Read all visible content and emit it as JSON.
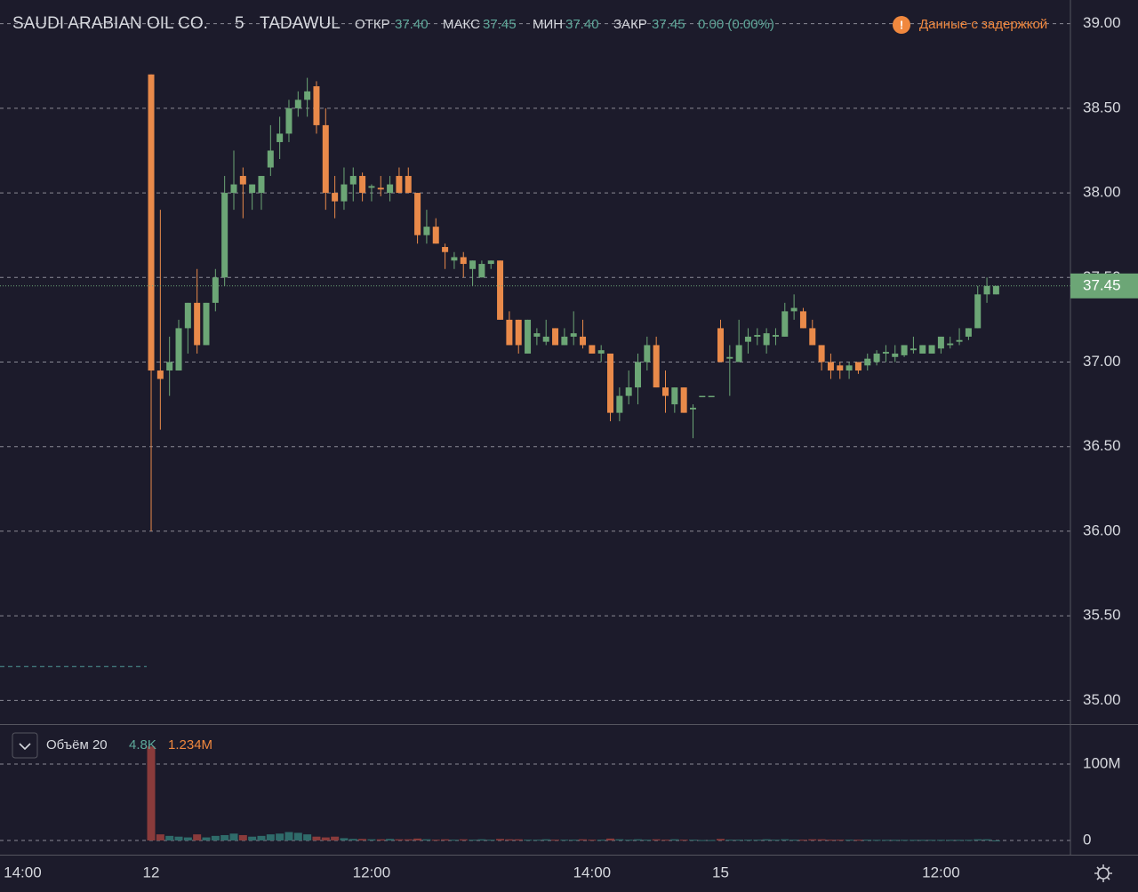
{
  "chart_data": {
    "type": "candlestick",
    "title": "SAUDI ARABIAN OIL CO.",
    "interval": "5",
    "exchange": "TADAWUL",
    "legend": {
      "open_label": "ОТКР",
      "open": "37.40",
      "high_label": "МАКС",
      "high": "37.45",
      "low_label": "МИН",
      "low": "37.40",
      "close_label": "ЗАКР",
      "close": "37.45",
      "change": "0.00 (0.00%)"
    },
    "notice_icon": "!",
    "notice": "Данные с задержкой",
    "categories": [
      "14:00",
      null,
      null,
      null,
      null,
      null,
      null,
      null,
      null,
      null,
      null,
      null,
      null,
      null,
      "12",
      null,
      null,
      null,
      null,
      null,
      null,
      null,
      null,
      null,
      null,
      null,
      null,
      null,
      null,
      null,
      null,
      null,
      null,
      null,
      null,
      null,
      null,
      null,
      "12:00",
      null,
      null,
      null,
      null,
      null,
      null,
      null,
      null,
      null,
      null,
      null,
      null,
      null,
      null,
      null,
      null,
      null,
      null,
      null,
      null,
      null,
      null,
      null,
      "14:00",
      null,
      null,
      null,
      null,
      null,
      null,
      null,
      null,
      null,
      null,
      null,
      null,
      null,
      "15",
      null,
      null,
      null,
      null,
      null,
      null,
      null,
      null,
      null,
      null,
      null,
      null,
      null,
      null,
      null,
      null,
      null,
      null,
      null,
      null,
      null,
      null,
      null,
      "12:00",
      null,
      null,
      null,
      null,
      null,
      null
    ],
    "open": [
      null,
      null,
      null,
      null,
      null,
      null,
      null,
      null,
      null,
      null,
      null,
      null,
      null,
      null,
      38.7,
      36.95,
      36.95,
      36.95,
      37.2,
      37.35,
      37.1,
      37.35,
      37.5,
      38.0,
      38.1,
      38.0,
      38.0,
      38.15,
      38.3,
      38.35,
      38.5,
      38.55,
      38.63,
      38.4,
      38.0,
      37.95,
      38.05,
      38.1,
      38.03,
      38.03,
      38.0,
      38.1,
      38.1,
      38.0,
      37.75,
      37.8,
      37.68,
      37.6,
      37.62,
      37.55,
      37.5,
      37.58,
      37.6,
      37.25,
      37.25,
      37.05,
      37.15,
      37.12,
      37.2,
      37.1,
      37.15,
      37.15,
      37.1,
      37.05,
      37.05,
      36.7,
      36.8,
      36.85,
      37.0,
      37.1,
      36.85,
      36.75,
      36.85,
      36.72,
      36.8,
      36.8,
      37.2,
      37.02,
      37.0,
      37.12,
      37.15,
      37.1,
      37.15,
      37.15,
      37.3,
      37.3,
      37.2,
      37.1,
      37.0,
      36.98,
      36.95,
      37.0,
      36.98,
      37.0,
      37.05,
      37.03,
      37.04,
      37.07,
      37.05,
      37.05,
      37.08,
      37.1,
      37.12,
      37.15,
      37.2,
      37.4,
      37.4
    ],
    "high": [
      null,
      null,
      null,
      null,
      null,
      null,
      null,
      null,
      null,
      null,
      null,
      null,
      null,
      null,
      38.7,
      37.9,
      37.15,
      37.25,
      37.35,
      37.55,
      37.35,
      37.55,
      38.1,
      38.25,
      38.15,
      38.05,
      38.1,
      38.4,
      38.45,
      38.55,
      38.6,
      38.68,
      38.66,
      38.5,
      38.1,
      38.15,
      38.15,
      38.12,
      38.05,
      38.1,
      38.1,
      38.15,
      38.15,
      38.0,
      37.9,
      37.85,
      37.7,
      37.65,
      37.65,
      37.6,
      37.6,
      37.6,
      37.6,
      37.3,
      37.25,
      37.25,
      37.2,
      37.25,
      37.2,
      37.2,
      37.3,
      37.25,
      37.1,
      37.1,
      37.05,
      36.85,
      36.95,
      37.05,
      37.15,
      37.15,
      36.95,
      36.85,
      36.85,
      36.75,
      36.8,
      36.8,
      37.25,
      37.1,
      37.25,
      37.2,
      37.2,
      37.2,
      37.2,
      37.35,
      37.4,
      37.32,
      37.25,
      37.1,
      37.05,
      37.0,
      37.0,
      37.0,
      37.05,
      37.07,
      37.1,
      37.1,
      37.1,
      37.15,
      37.1,
      37.1,
      37.15,
      37.15,
      37.2,
      37.2,
      37.45,
      37.5,
      37.45
    ],
    "low": [
      null,
      null,
      null,
      null,
      null,
      null,
      null,
      null,
      null,
      null,
      null,
      null,
      null,
      null,
      36.0,
      36.6,
      36.8,
      36.95,
      37.05,
      37.05,
      37.1,
      37.3,
      37.45,
      37.9,
      37.85,
      37.9,
      37.9,
      38.1,
      38.2,
      38.3,
      38.45,
      38.45,
      38.35,
      37.9,
      37.85,
      37.9,
      37.95,
      37.95,
      37.95,
      37.98,
      37.95,
      38.0,
      38.0,
      37.7,
      37.7,
      37.7,
      37.55,
      37.55,
      37.5,
      37.45,
      37.5,
      37.55,
      37.25,
      37.1,
      37.05,
      37.05,
      37.1,
      37.1,
      37.1,
      37.1,
      37.1,
      37.08,
      37.05,
      37.0,
      36.65,
      36.65,
      36.75,
      36.75,
      36.95,
      36.85,
      36.7,
      36.7,
      36.7,
      36.55,
      36.8,
      36.8,
      37.0,
      36.8,
      37.0,
      37.05,
      37.1,
      37.05,
      37.1,
      37.15,
      37.25,
      37.2,
      37.1,
      36.95,
      36.9,
      36.9,
      36.9,
      36.93,
      36.95,
      36.98,
      37.0,
      37.0,
      37.03,
      37.05,
      37.05,
      37.05,
      37.05,
      37.08,
      37.1,
      37.13,
      37.2,
      37.35,
      37.4
    ],
    "close": [
      null,
      null,
      null,
      null,
      null,
      null,
      null,
      null,
      null,
      null,
      null,
      null,
      null,
      null,
      36.95,
      36.9,
      37.0,
      37.2,
      37.35,
      37.1,
      37.35,
      37.5,
      38.0,
      38.05,
      38.05,
      38.05,
      38.1,
      38.25,
      38.35,
      38.5,
      38.55,
      38.6,
      38.4,
      38.0,
      37.95,
      38.05,
      38.1,
      38.0,
      38.04,
      38.02,
      38.05,
      38.0,
      38.0,
      37.75,
      37.8,
      37.7,
      37.65,
      37.62,
      37.58,
      37.6,
      37.58,
      37.6,
      37.25,
      37.1,
      37.1,
      37.25,
      37.17,
      37.15,
      37.1,
      37.15,
      37.17,
      37.1,
      37.05,
      37.07,
      36.7,
      36.8,
      36.85,
      37.0,
      37.1,
      36.85,
      36.8,
      36.85,
      36.7,
      36.73,
      36.8,
      36.8,
      37.0,
      37.03,
      37.1,
      37.15,
      37.16,
      37.17,
      37.16,
      37.3,
      37.32,
      37.2,
      37.1,
      37.0,
      36.95,
      36.95,
      36.98,
      36.95,
      37.02,
      37.05,
      37.06,
      37.05,
      37.1,
      37.08,
      37.1,
      37.1,
      37.15,
      37.11,
      37.13,
      37.2,
      37.4,
      37.45,
      37.45
    ],
    "up_color": "#6ca676",
    "down_color": "#e98a4a",
    "ylim": [
      34.86,
      39.14
    ],
    "yticks": [
      {
        "value": 35,
        "label": "35.00"
      },
      {
        "value": 35.5,
        "label": "35.50"
      },
      {
        "value": 36,
        "label": "36.00"
      },
      {
        "value": 36.5,
        "label": "36.50"
      },
      {
        "value": 37,
        "label": "37.00"
      },
      {
        "value": 37.5,
        "label": "37.50"
      },
      {
        "value": 38,
        "label": "38.00"
      },
      {
        "value": 38.5,
        "label": "38.50"
      },
      {
        "value": 39,
        "label": "39.00"
      }
    ],
    "grid": true,
    "last_price": {
      "value": 37.45,
      "label": "37.45"
    },
    "prev_level": 35.2,
    "volume": {
      "title": "Объём 20",
      "last": "4.8K",
      "ma": "1.234M",
      "values": [
        null,
        null,
        null,
        null,
        null,
        null,
        null,
        null,
        null,
        null,
        null,
        null,
        null,
        null,
        123000000,
        8000000,
        6000000,
        5000000,
        4000000,
        8000000,
        4000000,
        6000000,
        7000000,
        9000000,
        7000000,
        5000000,
        6000000,
        8000000,
        9000000,
        11000000,
        10000000,
        8000000,
        5000000,
        4000000,
        5000000,
        3000000,
        2000000,
        2000000,
        1500000,
        1500000,
        2000000,
        1500000,
        1500000,
        2500000,
        1500000,
        1000000,
        1500000,
        1000000,
        1500000,
        1000000,
        1500000,
        1000000,
        2000000,
        1500000,
        1500000,
        1000000,
        1000000,
        1500000,
        1000000,
        1000000,
        1000000,
        1500000,
        1000000,
        1000000,
        2500000,
        1500000,
        1000000,
        1500000,
        1000000,
        1500000,
        1000000,
        1500000,
        1000000,
        1000000,
        500000,
        500000,
        2000000,
        1000000,
        1000000,
        1000000,
        1000000,
        1500000,
        1000000,
        1500000,
        1000000,
        1000000,
        1500000,
        1500000,
        1000000,
        1000000,
        1000000,
        1000000,
        1000000,
        800000,
        800000,
        800000,
        800000,
        800000,
        800000,
        800000,
        800000,
        800000,
        800000,
        800000,
        1500000,
        1500000,
        4800
      ],
      "ylim": [
        -18600000,
        150000000
      ],
      "yticks": [
        {
          "value": 0,
          "label": "0"
        },
        {
          "value": 100000000,
          "label": "100M"
        }
      ],
      "up_color": "#2f6b6a",
      "down_color": "#8a3b3b"
    }
  }
}
